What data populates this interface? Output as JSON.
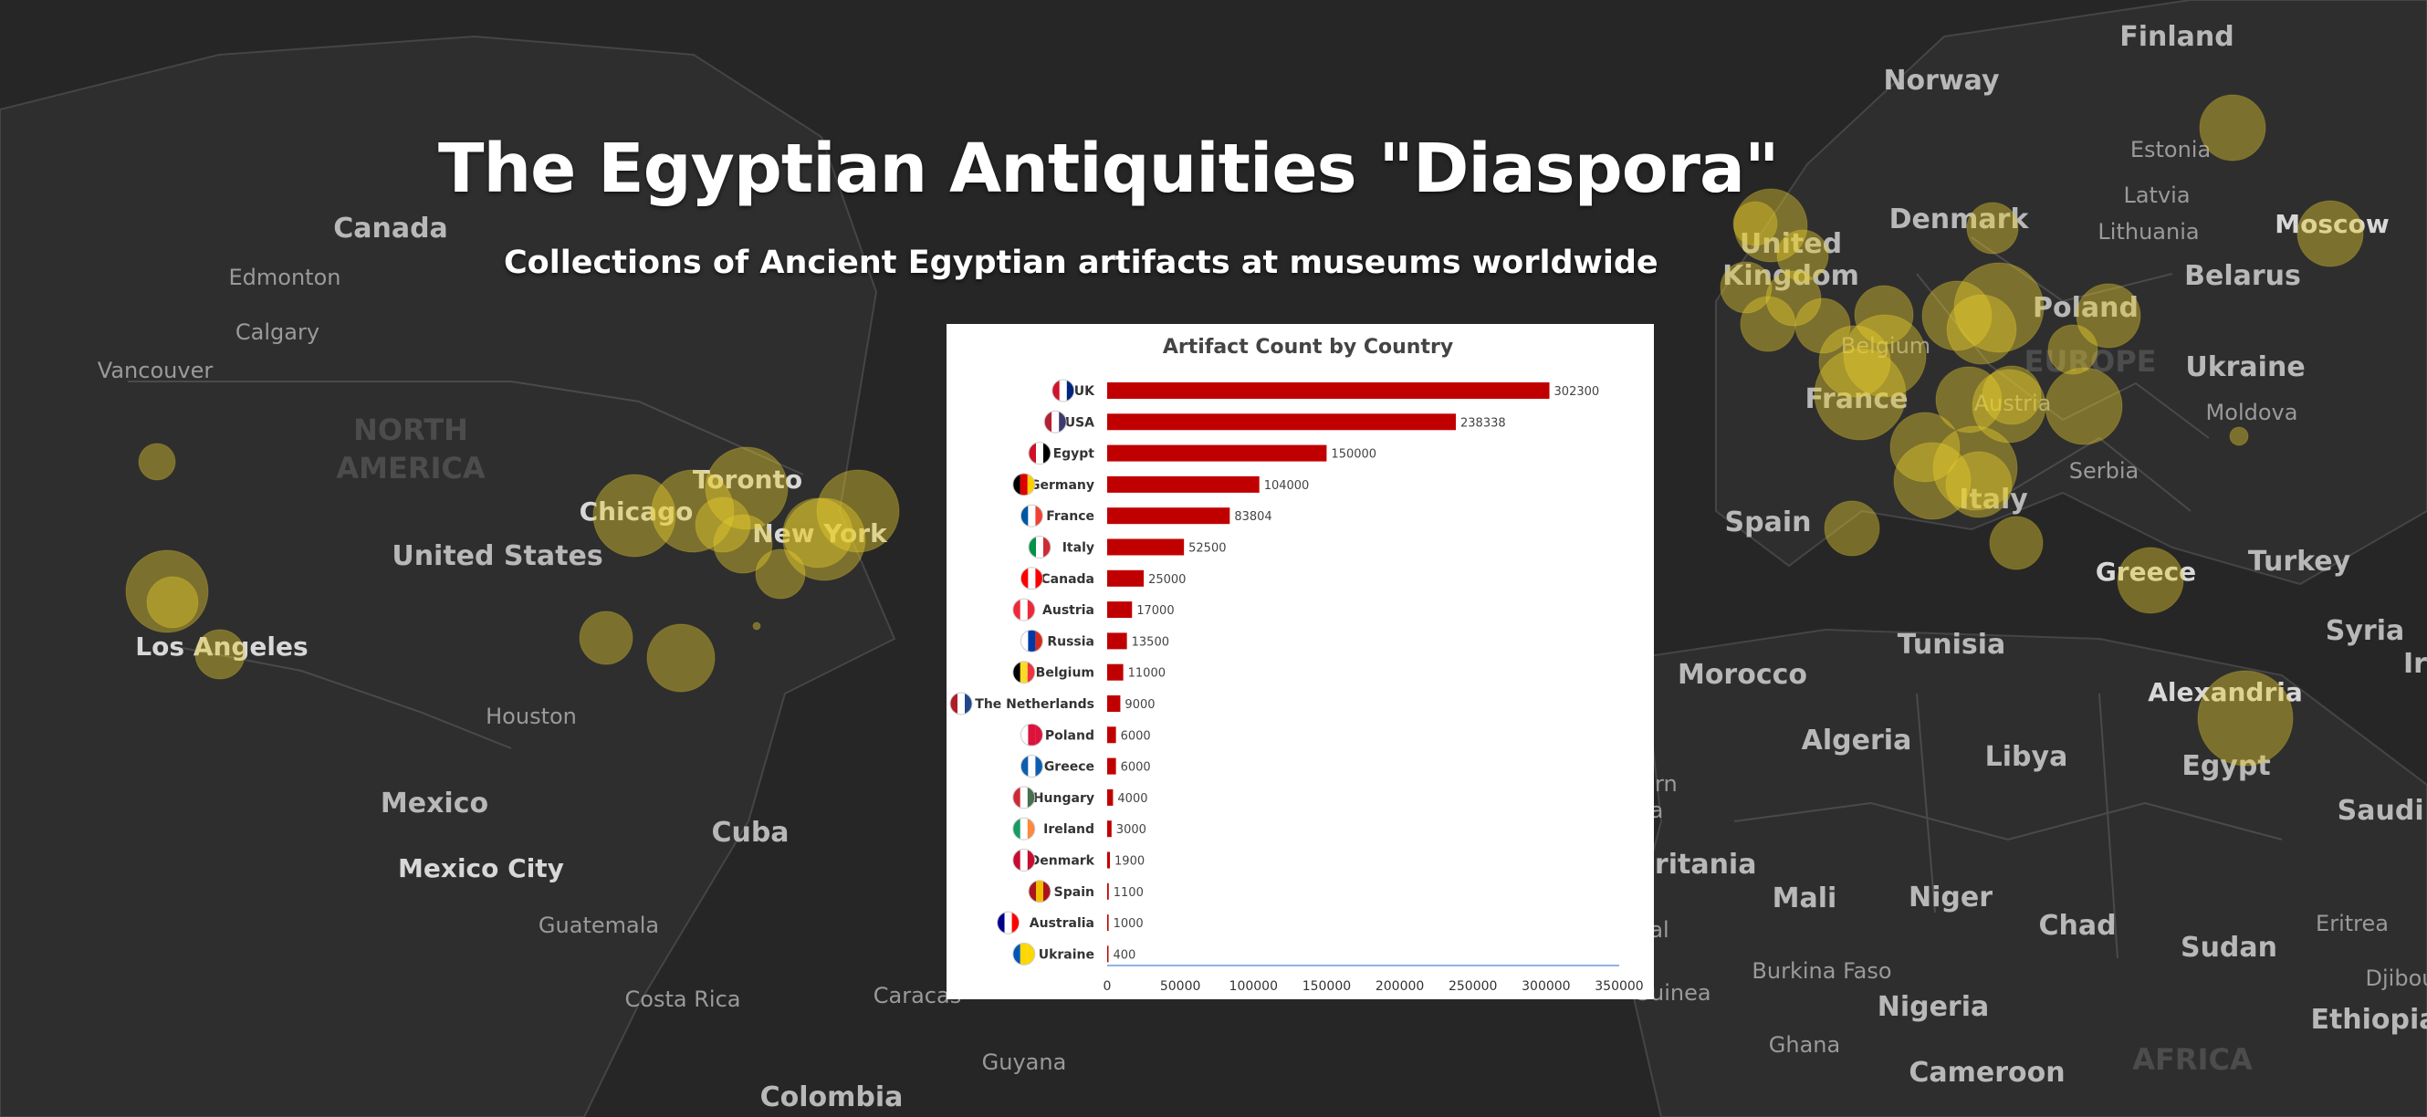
{
  "title": "The Egyptian Antiquities \"Diaspora\"",
  "subtitle": "Collections of Ancient Egyptian artifacts at museums worldwide",
  "map": {
    "background": "#262626",
    "land_color": "#2e2e2e",
    "border_color": "#4a4a4a",
    "bubble_color": "#e6cc2e",
    "labels": [
      {
        "text": "Canada",
        "kind": "country"
      },
      {
        "text": "Edmonton",
        "kind": "city"
      },
      {
        "text": "Calgary",
        "kind": "city"
      },
      {
        "text": "Vancouver",
        "kind": "city"
      },
      {
        "text": "NORTH",
        "kind": "continent"
      },
      {
        "text": "AMERICA",
        "kind": "continent"
      },
      {
        "text": "Chicago",
        "kind": "major"
      },
      {
        "text": "Toronto",
        "kind": "major"
      },
      {
        "text": "New York",
        "kind": "major"
      },
      {
        "text": "United States",
        "kind": "country"
      },
      {
        "text": "Los Angeles",
        "kind": "major"
      },
      {
        "text": "Houston",
        "kind": "city"
      },
      {
        "text": "Mexico",
        "kind": "country"
      },
      {
        "text": "Mexico City",
        "kind": "major"
      },
      {
        "text": "Cuba",
        "kind": "country"
      },
      {
        "text": "Guatemala",
        "kind": "city"
      },
      {
        "text": "Costa Rica",
        "kind": "city"
      },
      {
        "text": "Caracas",
        "kind": "city"
      },
      {
        "text": "Guyana",
        "kind": "city"
      },
      {
        "text": "Colombia",
        "kind": "country"
      },
      {
        "text": "Finland",
        "kind": "country"
      },
      {
        "text": "Norway",
        "kind": "country"
      },
      {
        "text": "Estonia",
        "kind": "city"
      },
      {
        "text": "Latvia",
        "kind": "city"
      },
      {
        "text": "Lithuania",
        "kind": "city"
      },
      {
        "text": "Denmark",
        "kind": "country"
      },
      {
        "text": "Moscow",
        "kind": "major"
      },
      {
        "text": "Belarus",
        "kind": "country"
      },
      {
        "text": "United",
        "kind": "country"
      },
      {
        "text": "Kingdom",
        "kind": "country"
      },
      {
        "text": "Poland",
        "kind": "country"
      },
      {
        "text": "Belgium",
        "kind": "city"
      },
      {
        "text": "EUROPE",
        "kind": "continent"
      },
      {
        "text": "Ukraine",
        "kind": "country"
      },
      {
        "text": "France",
        "kind": "country"
      },
      {
        "text": "Austria",
        "kind": "city"
      },
      {
        "text": "Moldova",
        "kind": "city"
      },
      {
        "text": "Serbia",
        "kind": "city"
      },
      {
        "text": "Spain",
        "kind": "country"
      },
      {
        "text": "Italy",
        "kind": "country"
      },
      {
        "text": "Greece",
        "kind": "major"
      },
      {
        "text": "Turkey",
        "kind": "country"
      },
      {
        "text": "Syria",
        "kind": "country"
      },
      {
        "text": "Irac",
        "kind": "country"
      },
      {
        "text": "Tunisia",
        "kind": "country"
      },
      {
        "text": "Morocco",
        "kind": "country"
      },
      {
        "text": "Algeria",
        "kind": "country"
      },
      {
        "text": "Libya",
        "kind": "country"
      },
      {
        "text": "Alexandria",
        "kind": "major"
      },
      {
        "text": "Egypt",
        "kind": "country"
      },
      {
        "text": "Saudi A",
        "kind": "country"
      },
      {
        "text": "Mali",
        "kind": "country"
      },
      {
        "text": "Niger",
        "kind": "country"
      },
      {
        "text": "Chad",
        "kind": "country"
      },
      {
        "text": "Sudan",
        "kind": "country"
      },
      {
        "text": "Eritrea",
        "kind": "city"
      },
      {
        "text": "Djibou",
        "kind": "city"
      },
      {
        "text": "Ethiopia",
        "kind": "country"
      },
      {
        "text": "Burkina Faso",
        "kind": "city"
      },
      {
        "text": "Nigeria",
        "kind": "country"
      },
      {
        "text": "Ghana",
        "kind": "city"
      },
      {
        "text": "Cameroon",
        "kind": "country"
      },
      {
        "text": "AFRICA",
        "kind": "continent"
      },
      {
        "text": "uritania",
        "kind": "country"
      },
      {
        "text": "Guinea",
        "kind": "city"
      },
      {
        "text": "ern",
        "kind": "city"
      },
      {
        "text": "a",
        "kind": "city"
      },
      {
        "text": "al",
        "kind": "city"
      }
    ]
  },
  "chart_data": {
    "type": "bar",
    "orientation": "horizontal",
    "title": "Artifact Count by Country",
    "categories": [
      "UK",
      "USA",
      "Egypt",
      "Germany",
      "France",
      "Italy",
      "Canada",
      "Austria",
      "Russia",
      "Belgium",
      "The Netherlands",
      "Poland",
      "Greece",
      "Hungary",
      "Ireland",
      "Denmark",
      "Spain",
      "Australia",
      "Ukraine"
    ],
    "values": [
      302300,
      238338,
      150000,
      104000,
      83804,
      52500,
      25000,
      17000,
      13500,
      11000,
      9000,
      6000,
      6000,
      4000,
      3000,
      1900,
      1100,
      1000,
      400
    ],
    "xlim": [
      0,
      350000
    ],
    "xticks": [
      0,
      50000,
      100000,
      150000,
      200000,
      250000,
      300000,
      350000
    ],
    "bar_color": "#c00000",
    "data_labels": true,
    "grid": false,
    "legend": "none"
  }
}
